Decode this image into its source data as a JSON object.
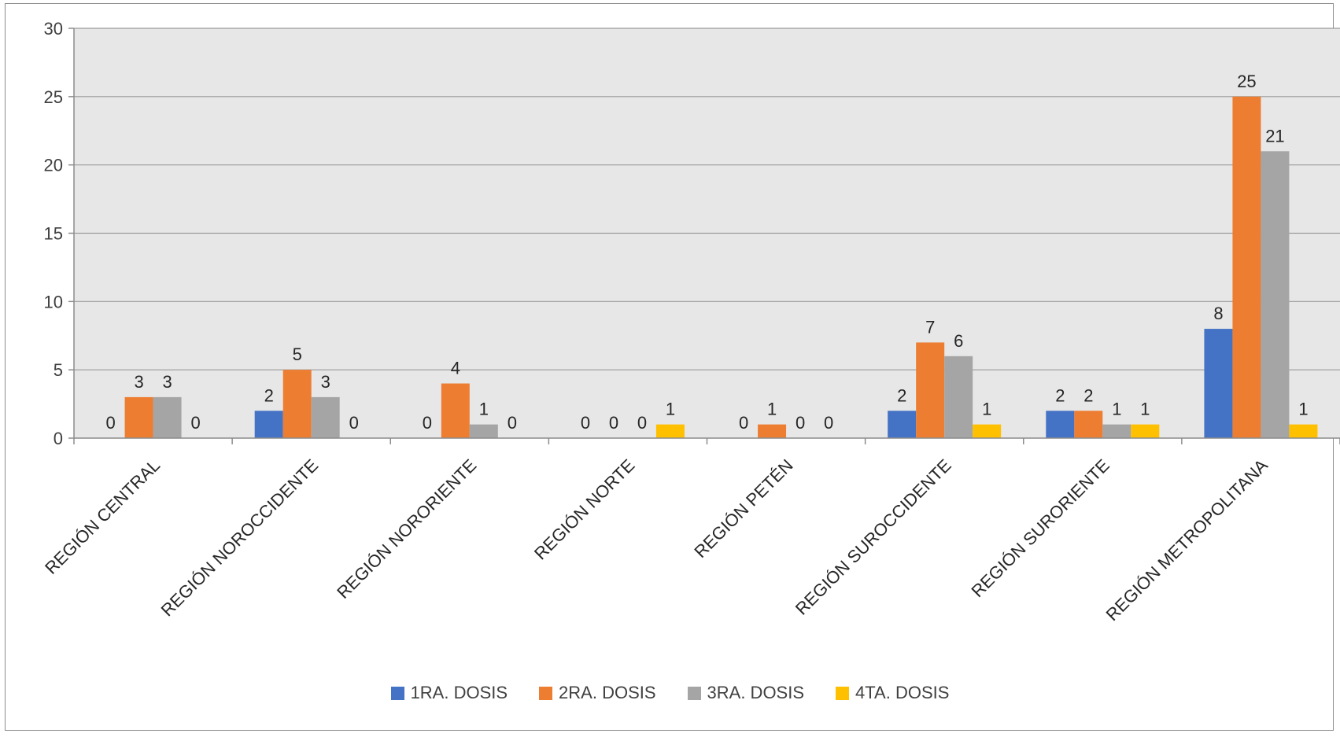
{
  "chart_data": {
    "type": "bar",
    "title": "",
    "xlabel": "",
    "ylabel": "",
    "ylim": [
      0,
      30
    ],
    "yticks": [
      0,
      5,
      10,
      15,
      20,
      25,
      30
    ],
    "grid": true,
    "legend_position": "bottom",
    "background_color": "#e7e7e7",
    "categories": [
      "REGIÓN CENTRAL",
      "REGIÓN NOROCCIDENTE",
      "REGIÓN NORORIENTE",
      "REGIÓN NORTE",
      "REGIÓN PETÉN",
      "REGIÓN SUROCCIDENTE",
      "REGIÓN SURORIENTE",
      "REGIÓN METROPOLITANA"
    ],
    "series": [
      {
        "name": "1RA. DOSIS",
        "color": "#4472c4",
        "values": [
          0,
          2,
          0,
          0,
          0,
          2,
          2,
          8
        ]
      },
      {
        "name": "2RA. DOSIS",
        "color": "#ed7d31",
        "values": [
          3,
          5,
          4,
          0,
          1,
          7,
          2,
          25
        ]
      },
      {
        "name": "3RA. DOSIS",
        "color": "#a5a5a5",
        "values": [
          3,
          3,
          1,
          0,
          0,
          6,
          1,
          21
        ]
      },
      {
        "name": "4TA. DOSIS",
        "color": "#ffc000",
        "values": [
          0,
          0,
          0,
          1,
          0,
          1,
          1,
          1
        ]
      }
    ]
  }
}
